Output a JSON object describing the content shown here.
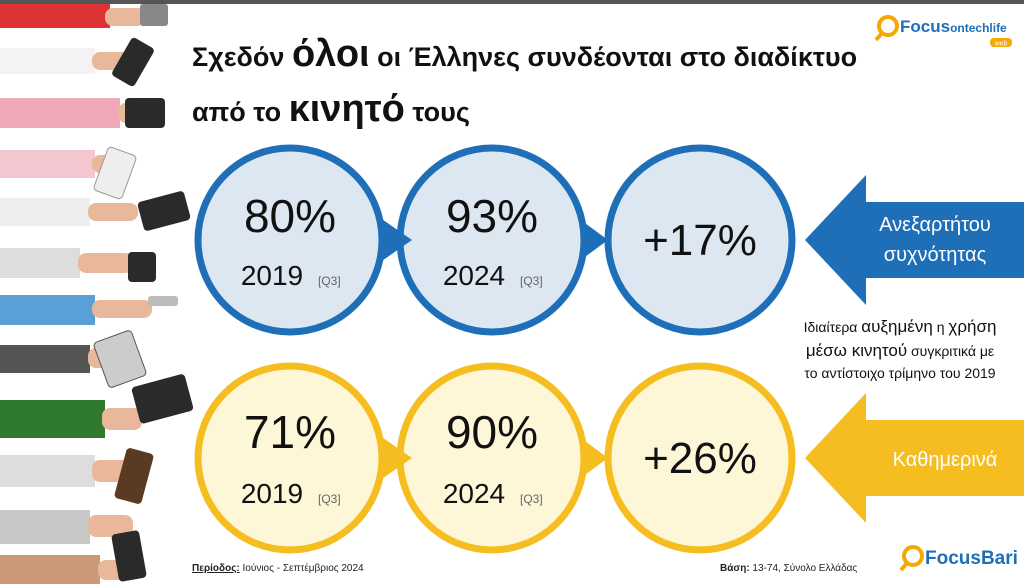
{
  "title": {
    "line1": [
      "Σχεδόν ",
      "όλοι",
      " οι Έλληνες συνδέονται στο διαδίκτυο"
    ],
    "line2": [
      "από το ",
      "κινητό",
      " τους"
    ]
  },
  "logo_top": {
    "brand": "Focus",
    "sub": "ontechlife",
    "tag": "web"
  },
  "rows": [
    {
      "first": {
        "value": "80%",
        "year": "2019",
        "tag": "[Q3]"
      },
      "second": {
        "value": "93%",
        "year": "2024",
        "tag": "[Q3]"
      },
      "change": "+17%",
      "label": [
        "Ανεξαρτήτου",
        "συχνότητας"
      ]
    },
    {
      "first": {
        "value": "71%",
        "year": "2019",
        "tag": "[Q3]"
      },
      "second": {
        "value": "90%",
        "year": "2024",
        "tag": "[Q3]"
      },
      "change": "+26%",
      "label": [
        "Καθημερινά"
      ]
    }
  ],
  "note": [
    [
      "Ιδιαίτερα ",
      "αυξημένη",
      " η ",
      "χρήση"
    ],
    [
      "μέσω ",
      "κινητού",
      " συγκριτικά με"
    ],
    [
      "το αντίστοιχο τρίμηνο του 2019"
    ]
  ],
  "footer": {
    "period_label": "Περίοδος:",
    "period": " Ιούνιος - Σεπτέμβριος 2024",
    "base_label": "Βάση:",
    "base": " 13-74, Σύνολο Ελλάδας"
  },
  "logo_bottom": "FocusBari"
}
